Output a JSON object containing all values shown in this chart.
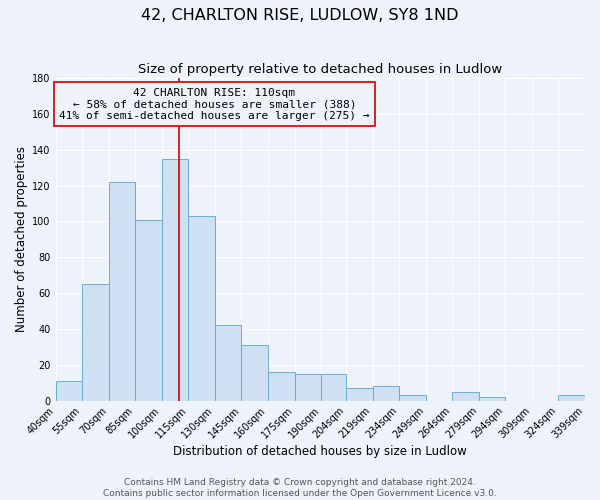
{
  "title": "42, CHARLTON RISE, LUDLOW, SY8 1ND",
  "subtitle": "Size of property relative to detached houses in Ludlow",
  "xlabel": "Distribution of detached houses by size in Ludlow",
  "ylabel": "Number of detached properties",
  "bar_left_edges": [
    40,
    55,
    70,
    85,
    100,
    115,
    130,
    145,
    160,
    175,
    190,
    204,
    219,
    234,
    249,
    264,
    279,
    294,
    309,
    324
  ],
  "bar_widths": [
    15,
    15,
    15,
    15,
    15,
    15,
    15,
    15,
    15,
    15,
    14,
    15,
    15,
    15,
    15,
    15,
    15,
    15,
    15,
    15
  ],
  "bar_heights": [
    11,
    65,
    122,
    101,
    135,
    103,
    42,
    31,
    16,
    15,
    15,
    7,
    8,
    3,
    0,
    5,
    2,
    0,
    0,
    3
  ],
  "tick_labels": [
    "40sqm",
    "55sqm",
    "70sqm",
    "85sqm",
    "100sqm",
    "115sqm",
    "130sqm",
    "145sqm",
    "160sqm",
    "175sqm",
    "190sqm",
    "204sqm",
    "219sqm",
    "234sqm",
    "249sqm",
    "264sqm",
    "279sqm",
    "294sqm",
    "309sqm",
    "324sqm",
    "339sqm"
  ],
  "bar_fill_color": "#cfe0f3",
  "bar_edge_color": "#6aaed6",
  "vline_x": 110,
  "vline_color": "#cc0000",
  "annotation_title": "42 CHARLTON RISE: 110sqm",
  "annotation_line1": "← 58% of detached houses are smaller (388)",
  "annotation_line2": "41% of semi-detached houses are larger (275) →",
  "annotation_box_edge": "#cc0000",
  "ylim": [
    0,
    180
  ],
  "yticks": [
    0,
    20,
    40,
    60,
    80,
    100,
    120,
    140,
    160,
    180
  ],
  "footer1": "Contains HM Land Registry data © Crown copyright and database right 2024.",
  "footer2": "Contains public sector information licensed under the Open Government Licence v3.0.",
  "background_color": "#eef2fa",
  "grid_color": "#ffffff",
  "title_fontsize": 11.5,
  "subtitle_fontsize": 9.5,
  "axis_label_fontsize": 8.5,
  "tick_fontsize": 7,
  "annotation_fontsize": 8,
  "footer_fontsize": 6.5
}
